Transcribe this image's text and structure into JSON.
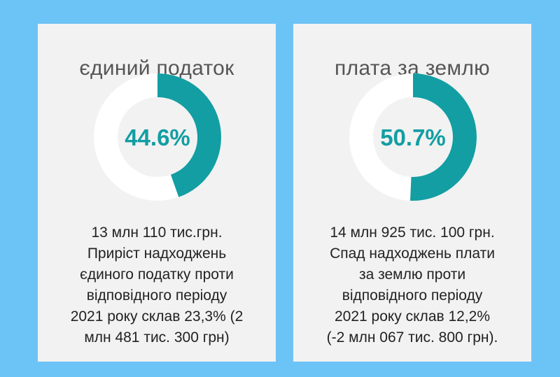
{
  "chart_data": [
    {
      "type": "pie",
      "title": "єдиний податок",
      "value": 44.6,
      "value_label": "44.6%",
      "range": [
        0,
        100
      ],
      "colors": {
        "fill": "#129ea3",
        "track": "#ffffff"
      },
      "description_lines": [
        "13 млн 110 тис.грн.",
        "Приріст надходжень",
        "єдиного податку проти",
        "відповідного періоду",
        "2021 року склав 23,3% (2",
        "млн 481 тис. 300 грн)"
      ]
    },
    {
      "type": "pie",
      "title": "плата за землю",
      "value": 50.7,
      "value_label": "50.7%",
      "range": [
        0,
        100
      ],
      "colors": {
        "fill": "#129ea3",
        "track": "#ffffff"
      },
      "description_lines": [
        "14 млн 925 тис. 100 грн.",
        "Спад надходжень плати",
        "за землю проти",
        "відповідного періоду",
        "2021 року склав 12,2%",
        "(-2 млн 067 тис. 800 грн)."
      ]
    }
  ]
}
